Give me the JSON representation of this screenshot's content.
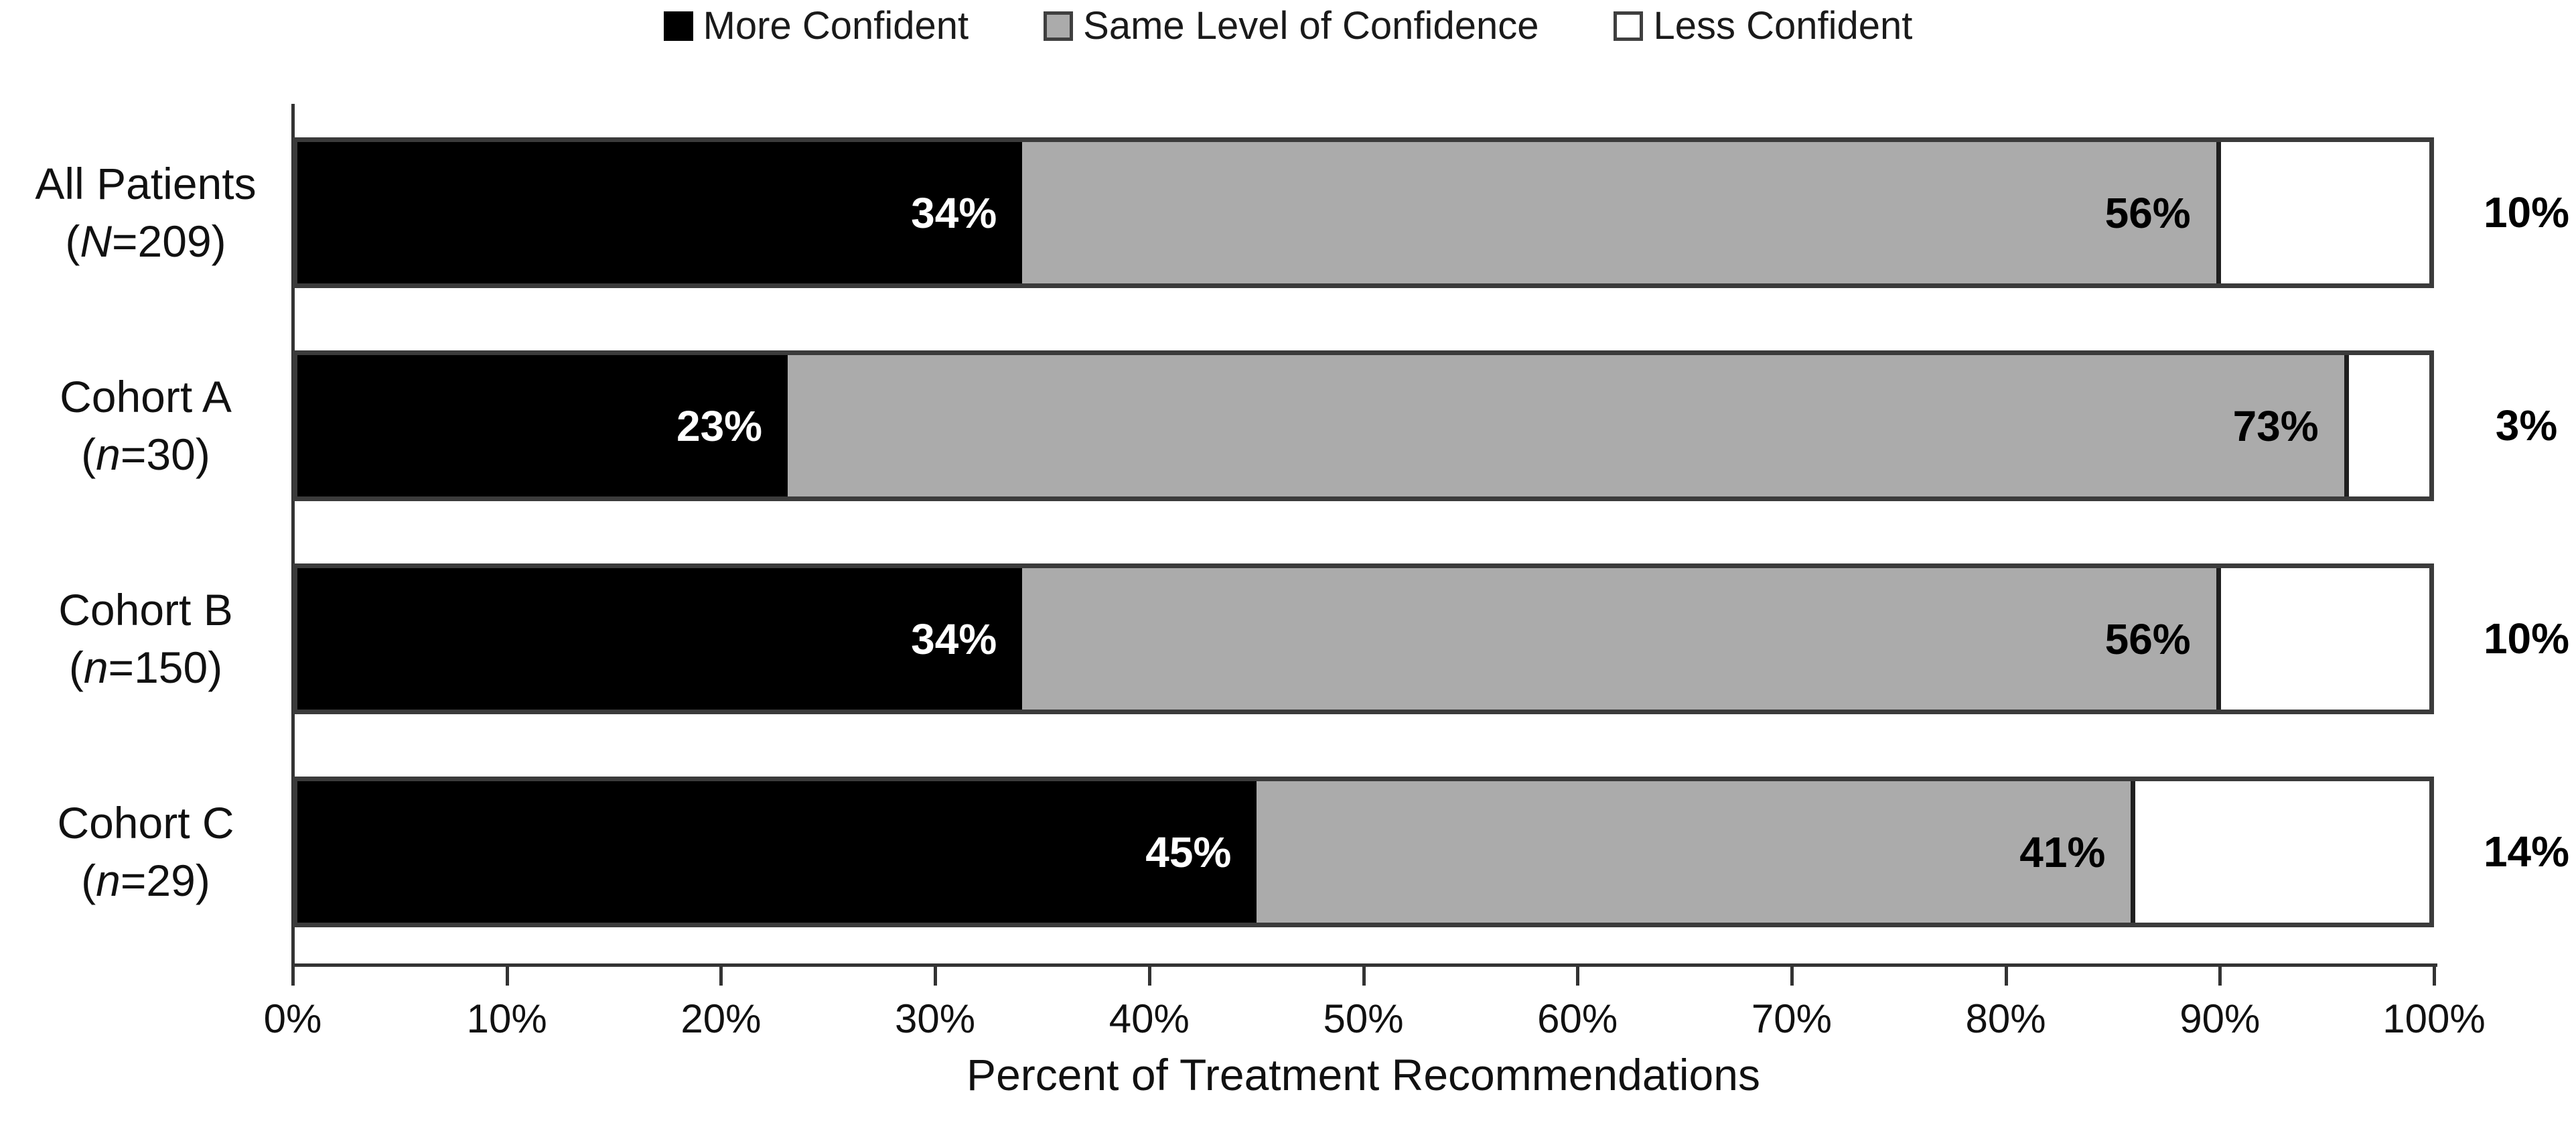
{
  "chart_data": {
    "type": "bar",
    "orientation": "horizontal",
    "stacked": true,
    "title": "",
    "xlabel": "Percent of Treatment Recommendations",
    "ylabel": "",
    "xlim": [
      0,
      100
    ],
    "x_ticks": [
      "0%",
      "10%",
      "20%",
      "30%",
      "40%",
      "50%",
      "60%",
      "70%",
      "80%",
      "90%",
      "100%"
    ],
    "grid": false,
    "legend_position": "top-center",
    "categories": [
      {
        "line1": "All Patients",
        "n_open": "(",
        "n_italic": "N",
        "n_rest": "=209)"
      },
      {
        "line1": "Cohort A",
        "n_open": "(",
        "n_italic": "n",
        "n_rest": "=30)"
      },
      {
        "line1": "Cohort B",
        "n_open": "(",
        "n_italic": "n",
        "n_rest": "=150)"
      },
      {
        "line1": "Cohort C",
        "n_open": "(",
        "n_italic": "n",
        "n_rest": "=29)"
      }
    ],
    "series": [
      {
        "name": "More Confident",
        "color": "#000000",
        "text_color": "#ffffff",
        "label_placement": "inside-right",
        "values": [
          34,
          23,
          34,
          45
        ],
        "labels": [
          "34%",
          "23%",
          "34%",
          "45%"
        ]
      },
      {
        "name": "Same Level of Confidence",
        "color": "#ababab",
        "text_color": "#000000",
        "label_placement": "inside-right",
        "values": [
          56,
          73,
          56,
          41
        ],
        "labels": [
          "56%",
          "73%",
          "56%",
          "41%"
        ]
      },
      {
        "name": "Less Confident",
        "color": "#ffffff",
        "text_color": "#000000",
        "label_placement": "outside-right",
        "values": [
          10,
          3,
          10,
          14
        ],
        "labels": [
          "10%",
          "3%",
          "10%",
          "14%"
        ]
      }
    ]
  },
  "styles": {
    "axis_color": "#333333",
    "bar_border_color": "#3b3b3b",
    "segment_divider_color": "#1f1f1f",
    "swatch_border_color": "#3f3f3f",
    "background": "#ffffff"
  }
}
